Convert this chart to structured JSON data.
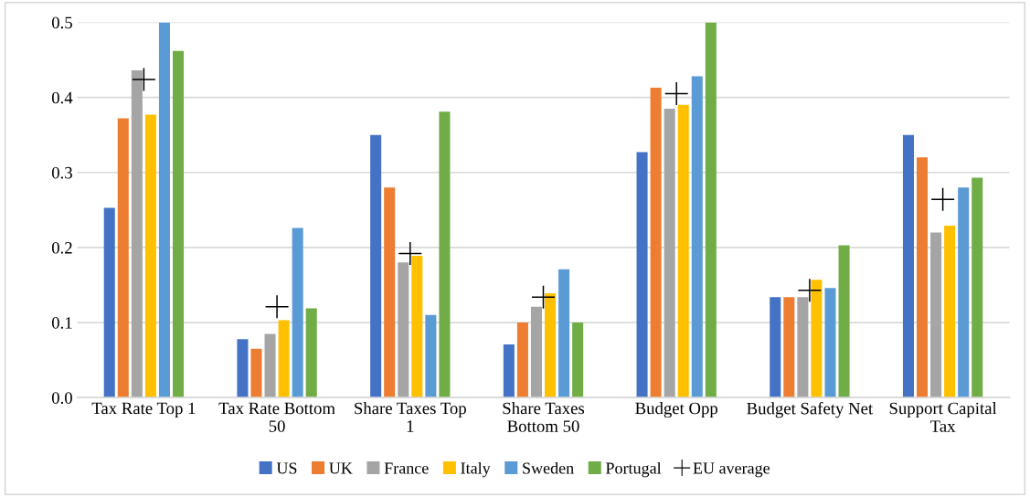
{
  "chart_data": {
    "type": "bar",
    "categories": [
      "Tax Rate Top 1",
      "Tax Rate Bottom\n50",
      "Share Taxes Top\n1",
      "Share Taxes\nBottom 50",
      "Budget Opp",
      "Budget Safety Net",
      "Support Capital\nTax"
    ],
    "series": [
      {
        "name": "US",
        "color": "#4472c4",
        "values": [
          0.253,
          0.078,
          0.35,
          0.071,
          0.327,
          0.134,
          0.35
        ]
      },
      {
        "name": "UK",
        "color": "#ed7d31",
        "values": [
          0.372,
          0.065,
          0.28,
          0.1,
          0.413,
          0.134,
          0.32
        ]
      },
      {
        "name": "France",
        "color": "#a5a5a5",
        "values": [
          0.436,
          0.085,
          0.18,
          0.121,
          0.385,
          0.134,
          0.22
        ]
      },
      {
        "name": "Italy",
        "color": "#ffc000",
        "values": [
          0.377,
          0.103,
          0.189,
          0.139,
          0.39,
          0.157,
          0.229
        ]
      },
      {
        "name": "Sweden",
        "color": "#5b9bd5",
        "values": [
          0.5,
          0.226,
          0.11,
          0.171,
          0.428,
          0.146,
          0.28
        ]
      },
      {
        "name": "Portugal",
        "color": "#70ad47",
        "values": [
          0.462,
          0.119,
          0.381,
          0.1,
          0.5,
          0.203,
          0.293
        ]
      },
      {
        "name": "EU average",
        "type": "scatter",
        "marker": "cross",
        "color": "#000000",
        "x": [
          "Tax Rate Top 1",
          "Tax Rate Bottom\n50",
          "Share Taxes Top\n1",
          "Share Taxes\nBottom 50",
          "Budget Opp",
          "Budget Safety Net",
          "Support Capital\nTax"
        ],
        "values": [
          0.424,
          0.121,
          0.192,
          0.134,
          0.405,
          0.143,
          0.264
        ]
      }
    ],
    "ylim": [
      0,
      0.5
    ],
    "yticks": [
      {
        "value": 0,
        "label": "0.0"
      },
      0.1,
      0.2,
      0.3,
      0.4,
      0.5
    ],
    "grid": "y",
    "legend": "bottom"
  }
}
